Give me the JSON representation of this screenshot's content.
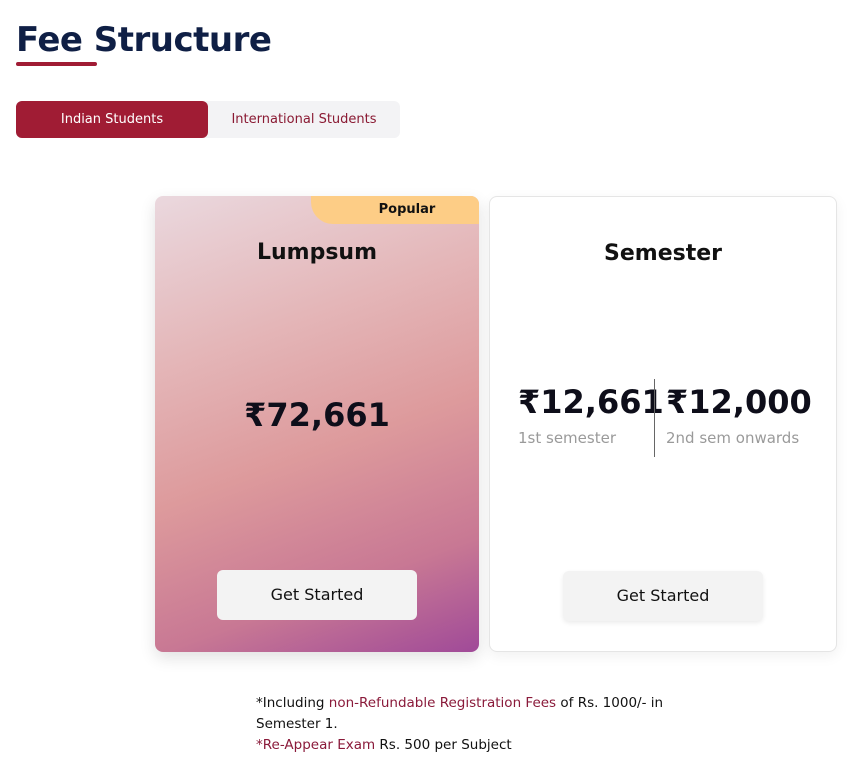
{
  "header": {
    "title": "Fee Structure"
  },
  "tabs": [
    {
      "label": "Indian Students",
      "active": true
    },
    {
      "label": "International Students",
      "active": false
    }
  ],
  "plans": {
    "lumpsum": {
      "badge": "Popular",
      "name": "Lumpsum",
      "price": "₹72,661",
      "button": "Get Started"
    },
    "semester": {
      "name": "Semester",
      "first_price": "₹12,661",
      "first_label": "1st semester",
      "second_price": "₹12,000",
      "second_label": "2nd sem onwards",
      "button": "Get Started"
    }
  },
  "notes": {
    "line1_prefix": "*Including ",
    "line1_highlight": "non-Refundable Registration Fees",
    "line1_suffix": " of Rs. 1000/- in Semester 1.",
    "line2_highlight": "*Re-Appear Exam",
    "line2_suffix": " Rs. 500 per Subject"
  },
  "colors": {
    "accent": "#a01c34",
    "title": "#0f1f45",
    "badge": "#fdcd86"
  }
}
